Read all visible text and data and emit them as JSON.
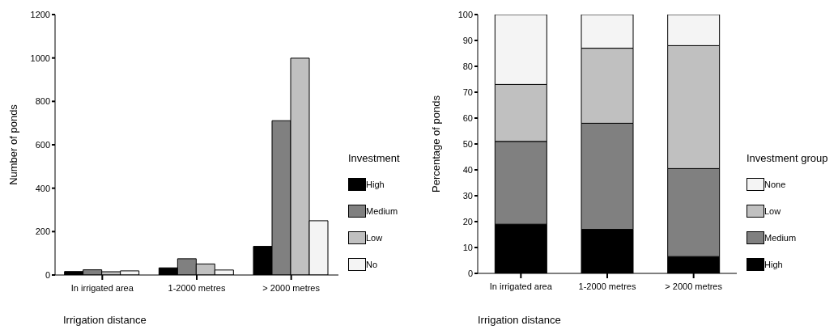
{
  "chart_data": [
    {
      "type": "bar",
      "xlabel": "Irrigation distance",
      "ylabel": "Number of ponds",
      "legend_title": "Investment",
      "categories": [
        "In irrigated area",
        "1-2000 metres",
        "> 2000 metres"
      ],
      "series": [
        {
          "name": "High",
          "color": "#000000",
          "values": [
            16,
            33,
            132
          ]
        },
        {
          "name": "Medium",
          "color": "#808080",
          "values": [
            24,
            75,
            711
          ]
        },
        {
          "name": "Low",
          "color": "#c0c0c0",
          "values": [
            15,
            51,
            999
          ]
        },
        {
          "name": "No",
          "color": "#f4f4f4",
          "values": [
            19,
            23,
            250
          ]
        }
      ],
      "ylim": [
        0,
        1200
      ],
      "yticks": [
        0,
        200,
        400,
        600,
        800,
        1000,
        1200
      ],
      "grid": false,
      "legend": "right"
    },
    {
      "type": "bar",
      "stacked": true,
      "xlabel": "Irrigation distance",
      "ylabel": "Percentage of ponds",
      "legend_title": "Investment group",
      "categories": [
        "In irrigated area",
        "1-2000 metres",
        "> 2000 metres"
      ],
      "series": [
        {
          "name": "High",
          "color": "#000000",
          "values": [
            19,
            17,
            6.5
          ]
        },
        {
          "name": "Medium",
          "color": "#808080",
          "values": [
            32,
            41,
            34
          ]
        },
        {
          "name": "Low",
          "color": "#c0c0c0",
          "values": [
            22,
            29,
            47.5
          ]
        },
        {
          "name": "None",
          "color": "#f4f4f4",
          "values": [
            27,
            13,
            12
          ]
        }
      ],
      "ylim": [
        0,
        100
      ],
      "yticks": [
        0,
        10,
        20,
        30,
        40,
        50,
        60,
        70,
        80,
        90,
        100
      ],
      "grid": false,
      "legend": "right"
    }
  ]
}
